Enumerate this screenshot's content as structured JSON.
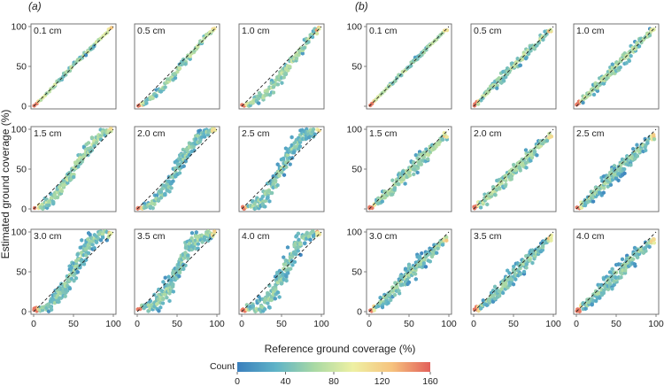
{
  "figure": {
    "xlabel": "Reference ground coverage (%)",
    "ylabel": "Estimated ground coverage (%)",
    "colorbar": {
      "label": "Count",
      "ticks": [
        "0",
        "40",
        "80",
        "120",
        "160"
      ],
      "range": [
        0,
        160
      ],
      "colors": [
        "#3a7fbd",
        "#5fb3c7",
        "#a9d9a4",
        "#eef0a3",
        "#f6c37e",
        "#e2605a"
      ]
    },
    "colors": {
      "reference_line": "#222222",
      "frame": "#666666",
      "panel_bg": "#ffffff"
    }
  },
  "chart_data": [
    {
      "panel_label": "(a)",
      "type": "heatmap",
      "plot_style": "hexbin",
      "xlim": [
        0,
        100
      ],
      "ylim": [
        0,
        100
      ],
      "x_ticks": [
        "0",
        "50",
        "100"
      ],
      "y_ticks": [
        "0",
        "50",
        "100"
      ],
      "reference_line": "1:1 dashed",
      "subplots": [
        {
          "title": "0.1 cm",
          "relation": "near 1:1",
          "bias": 0.5,
          "spread": 1.5,
          "points": [
            [
              0,
              0
            ],
            [
              10,
              9
            ],
            [
              25,
              25
            ],
            [
              40,
              41
            ],
            [
              55,
              56
            ],
            [
              70,
              71
            ],
            [
              85,
              86
            ],
            [
              98,
              99
            ]
          ]
        },
        {
          "title": "0.5 cm",
          "relation": "below 1:1 at low-mid coverage",
          "bias": -6,
          "spread": 3,
          "points": [
            [
              0,
              0
            ],
            [
              10,
              4
            ],
            [
              25,
              16
            ],
            [
              40,
              32
            ],
            [
              55,
              50
            ],
            [
              70,
              68
            ],
            [
              85,
              86
            ],
            [
              97,
              98
            ]
          ]
        },
        {
          "title": "1.0 cm",
          "relation": "below 1:1 at low-mid coverage",
          "bias": -10,
          "spread": 5,
          "points": [
            [
              0,
              0
            ],
            [
              10,
              3
            ],
            [
              25,
              12
            ],
            [
              40,
              26
            ],
            [
              55,
              45
            ],
            [
              70,
              64
            ],
            [
              85,
              84
            ],
            [
              97,
              98
            ]
          ]
        },
        {
          "title": "1.5 cm",
          "relation": "S-shaped around 1:1",
          "bias": -4,
          "spread": 6,
          "points": [
            [
              0,
              0
            ],
            [
              10,
              3
            ],
            [
              25,
              13
            ],
            [
              40,
              33
            ],
            [
              55,
              57
            ],
            [
              70,
              78
            ],
            [
              85,
              93
            ],
            [
              97,
              100
            ]
          ]
        },
        {
          "title": "2.0 cm",
          "relation": "S-shaped around 1:1",
          "bias": -4,
          "spread": 7,
          "points": [
            [
              0,
              0
            ],
            [
              10,
              2
            ],
            [
              25,
              11
            ],
            [
              40,
              32
            ],
            [
              55,
              60
            ],
            [
              70,
              82
            ],
            [
              85,
              96
            ],
            [
              97,
              100
            ]
          ]
        },
        {
          "title": "2.5 cm",
          "relation": "S-shaped around 1:1",
          "bias": -5,
          "spread": 8,
          "points": [
            [
              0,
              0
            ],
            [
              10,
              2
            ],
            [
              25,
              10
            ],
            [
              40,
              30
            ],
            [
              55,
              60
            ],
            [
              70,
              84
            ],
            [
              85,
              97
            ],
            [
              97,
              100
            ]
          ]
        },
        {
          "title": "3.0 cm",
          "relation": "S-shaped around 1:1",
          "bias": -6,
          "spread": 9,
          "points": [
            [
              0,
              0
            ],
            [
              10,
              3
            ],
            [
              25,
              12
            ],
            [
              40,
              32
            ],
            [
              55,
              62
            ],
            [
              70,
              86
            ],
            [
              85,
              98
            ],
            [
              97,
              100
            ]
          ]
        },
        {
          "title": "3.5 cm",
          "relation": "S-shaped around 1:1",
          "bias": -6,
          "spread": 10,
          "points": [
            [
              0,
              0
            ],
            [
              10,
              2
            ],
            [
              25,
              11
            ],
            [
              40,
              30
            ],
            [
              55,
              62
            ],
            [
              70,
              87
            ],
            [
              85,
              98
            ],
            [
              97,
              100
            ]
          ]
        },
        {
          "title": "4.0 cm",
          "relation": "S-shaped around 1:1",
          "bias": -8,
          "spread": 10,
          "points": [
            [
              0,
              0
            ],
            [
              10,
              1
            ],
            [
              25,
              6
            ],
            [
              40,
              22
            ],
            [
              55,
              55
            ],
            [
              70,
              84
            ],
            [
              85,
              98
            ],
            [
              97,
              100
            ]
          ]
        }
      ]
    },
    {
      "panel_label": "(b)",
      "type": "heatmap",
      "plot_style": "hexbin",
      "xlim": [
        0,
        100
      ],
      "ylim": [
        0,
        100
      ],
      "x_ticks": [
        "0",
        "50",
        "100"
      ],
      "y_ticks": [
        "0",
        "50",
        "100"
      ],
      "reference_line": "1:1 dashed",
      "subplots": [
        {
          "title": "0.1 cm",
          "relation": "near 1:1",
          "bias": 0,
          "spread": 1.5,
          "points": [
            [
              0,
              0
            ],
            [
              10,
              10
            ],
            [
              25,
              25
            ],
            [
              40,
              40
            ],
            [
              55,
              55
            ],
            [
              70,
              70
            ],
            [
              85,
              85
            ],
            [
              95,
              95
            ]
          ]
        },
        {
          "title": "0.5 cm",
          "relation": "near 1:1",
          "bias": 0,
          "spread": 4,
          "points": [
            [
              0,
              0
            ],
            [
              10,
              10
            ],
            [
              25,
              25
            ],
            [
              40,
              40
            ],
            [
              55,
              55
            ],
            [
              70,
              70
            ],
            [
              85,
              85
            ],
            [
              95,
              95
            ]
          ]
        },
        {
          "title": "1.0 cm",
          "relation": "near 1:1",
          "bias": 0,
          "spread": 5,
          "points": [
            [
              0,
              0
            ],
            [
              10,
              10
            ],
            [
              25,
              25
            ],
            [
              40,
              40
            ],
            [
              55,
              55
            ],
            [
              70,
              70
            ],
            [
              85,
              85
            ],
            [
              95,
              95
            ]
          ]
        },
        {
          "title": "1.5 cm",
          "relation": "slightly below 1:1",
          "bias": -3,
          "spread": 6,
          "points": [
            [
              0,
              0
            ],
            [
              10,
              8
            ],
            [
              25,
              22
            ],
            [
              40,
              37
            ],
            [
              55,
              52
            ],
            [
              70,
              67
            ],
            [
              85,
              81
            ],
            [
              95,
              92
            ]
          ]
        },
        {
          "title": "2.0 cm",
          "relation": "slightly below 1:1",
          "bias": -3,
          "spread": 6,
          "points": [
            [
              0,
              0
            ],
            [
              10,
              8
            ],
            [
              25,
              22
            ],
            [
              40,
              37
            ],
            [
              55,
              52
            ],
            [
              70,
              67
            ],
            [
              85,
              81
            ],
            [
              95,
              92
            ]
          ]
        },
        {
          "title": "2.5 cm",
          "relation": "slightly below 1:1",
          "bias": -4,
          "spread": 7,
          "points": [
            [
              0,
              0
            ],
            [
              10,
              7
            ],
            [
              25,
              21
            ],
            [
              40,
              36
            ],
            [
              55,
              51
            ],
            [
              70,
              66
            ],
            [
              85,
              80
            ],
            [
              95,
              91
            ]
          ]
        },
        {
          "title": "3.0 cm",
          "relation": "slightly below 1:1",
          "bias": -4,
          "spread": 7,
          "points": [
            [
              0,
              0
            ],
            [
              10,
              7
            ],
            [
              25,
              21
            ],
            [
              40,
              36
            ],
            [
              55,
              51
            ],
            [
              70,
              66
            ],
            [
              85,
              80
            ],
            [
              95,
              91
            ]
          ]
        },
        {
          "title": "3.5 cm",
          "relation": "slightly below 1:1",
          "bias": -4,
          "spread": 7,
          "points": [
            [
              0,
              0
            ],
            [
              10,
              7
            ],
            [
              25,
              21
            ],
            [
              40,
              36
            ],
            [
              55,
              51
            ],
            [
              70,
              66
            ],
            [
              85,
              80
            ],
            [
              95,
              91
            ]
          ]
        },
        {
          "title": "4.0 cm",
          "relation": "slightly below 1:1",
          "bias": -4,
          "spread": 7,
          "points": [
            [
              0,
              0
            ],
            [
              10,
              7
            ],
            [
              25,
              21
            ],
            [
              40,
              36
            ],
            [
              55,
              51
            ],
            [
              70,
              66
            ],
            [
              85,
              80
            ],
            [
              95,
              91
            ]
          ]
        }
      ]
    }
  ]
}
